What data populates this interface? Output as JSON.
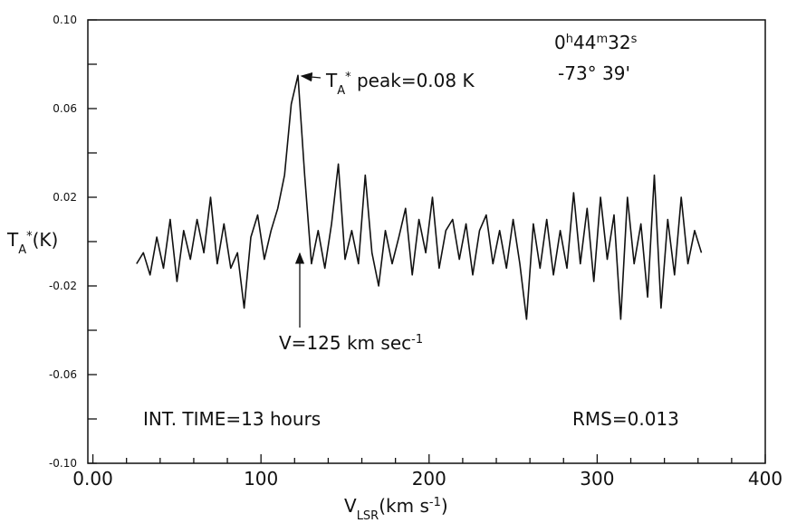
{
  "chart_data": {
    "type": "line",
    "color": "#111111",
    "xlim": [
      -3,
      400
    ],
    "ylim": [
      -0.1,
      0.1
    ],
    "xticks": [
      {
        "value": 0,
        "label": "0.00"
      },
      100,
      200,
      300,
      400
    ],
    "xminorticks": [
      20,
      40,
      60,
      80,
      120,
      140,
      160,
      180,
      220,
      240,
      260,
      280,
      320,
      340,
      360,
      380
    ],
    "yticks": [
      {
        "value": 0.1,
        "label": "0.10"
      },
      0.06,
      0.02,
      -0.02,
      -0.06,
      {
        "value": -0.1,
        "label": "-0.10"
      }
    ],
    "yminorticks": [
      0.08,
      0.04,
      0,
      -0.04,
      -0.08
    ],
    "ylabel": [
      {
        "t": "T"
      },
      {
        "t": "A",
        "sub": true
      },
      {
        "t": "*",
        "sup": true
      },
      {
        "t": "(K)"
      }
    ],
    "xlabel": [
      {
        "t": "V"
      },
      {
        "t": "LSR",
        "sub": true
      },
      {
        "t": "(km s"
      },
      {
        "t": "-1",
        "sup": true
      },
      {
        "t": ")"
      }
    ],
    "annotations": [
      [
        {
          "t": "T"
        },
        {
          "t": "A",
          "sub": true
        },
        {
          "t": "*",
          "sup": true
        },
        {
          "t": " peak=0.08 K"
        }
      ],
      [
        {
          "t": "0"
        },
        {
          "t": "h",
          "sup": true
        },
        {
          "t": "44"
        },
        {
          "t": "m",
          "sup": true
        },
        {
          "t": "32"
        },
        {
          "t": "s",
          "sup": true
        }
      ],
      [
        {
          "t": "-73° 39'"
        }
      ],
      [
        {
          "t": "V=125 km sec"
        },
        {
          "t": "-1",
          "sup": true
        }
      ],
      [
        {
          "t": "INT. TIME=13 hours"
        }
      ],
      [
        {
          "t": "RMS=0.013"
        }
      ]
    ],
    "x": [
      26,
      30,
      34,
      38,
      42,
      46,
      50,
      54,
      58,
      62,
      66,
      70,
      74,
      78,
      82,
      86,
      90,
      94,
      98,
      102,
      106,
      110,
      114,
      118,
      122,
      126,
      130,
      134,
      138,
      142,
      146,
      150,
      154,
      158,
      162,
      166,
      170,
      174,
      178,
      182,
      186,
      190,
      194,
      198,
      202,
      206,
      210,
      214,
      218,
      222,
      226,
      230,
      234,
      238,
      242,
      246,
      250,
      254,
      258,
      262,
      266,
      270,
      274,
      278,
      282,
      286,
      290,
      294,
      298,
      302,
      306,
      310,
      314,
      318,
      322,
      326,
      330,
      334,
      338,
      342,
      346,
      350,
      354,
      358,
      362
    ],
    "values": [
      -0.01,
      -0.005,
      -0.015,
      0.002,
      -0.012,
      0.01,
      -0.018,
      0.005,
      -0.008,
      0.01,
      -0.005,
      0.02,
      -0.01,
      0.008,
      -0.012,
      -0.005,
      -0.03,
      0.002,
      0.012,
      -0.008,
      0.005,
      0.015,
      0.03,
      0.062,
      0.075,
      0.03,
      -0.01,
      0.005,
      -0.012,
      0.008,
      0.035,
      -0.008,
      0.005,
      -0.01,
      0.03,
      -0.005,
      -0.02,
      0.005,
      -0.01,
      0.002,
      0.015,
      -0.015,
      0.01,
      -0.005,
      0.02,
      -0.012,
      0.005,
      0.01,
      -0.008,
      0.008,
      -0.015,
      0.005,
      0.012,
      -0.01,
      0.005,
      -0.012,
      0.01,
      -0.01,
      -0.035,
      0.008,
      -0.012,
      0.01,
      -0.015,
      0.005,
      -0.012,
      0.022,
      -0.01,
      0.015,
      -0.018,
      0.02,
      -0.008,
      0.012,
      -0.035,
      0.02,
      -0.01,
      0.008,
      -0.025,
      0.03,
      -0.03,
      0.01,
      -0.015,
      0.02,
      -0.01,
      0.005,
      -0.005
    ]
  }
}
